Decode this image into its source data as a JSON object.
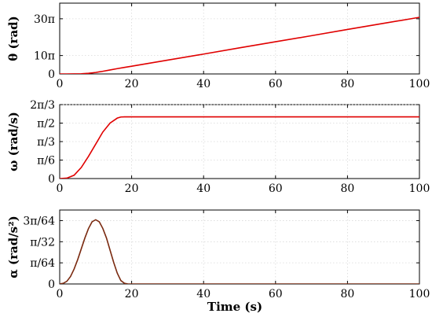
{
  "chart_data": [
    {
      "type": "line",
      "ylabel": "θ (rad)",
      "xlabel": "",
      "xlim": [
        0,
        100
      ],
      "ylim": [
        0,
        38.5
      ],
      "yunit": "π",
      "grid": true,
      "xticks": [
        0,
        20,
        40,
        60,
        80,
        100
      ],
      "xtick_labels": [
        "0",
        "20",
        "40",
        "60",
        "80",
        "100"
      ],
      "yticks": [
        0,
        10,
        30
      ],
      "ytick_labels": [
        "0",
        "10π",
        "30π"
      ],
      "series": [
        {
          "color": "#e00000",
          "x": [
            0,
            2,
            4,
            6,
            8,
            10,
            12,
            14,
            16,
            18,
            20,
            30,
            40,
            50,
            60,
            70,
            80,
            90,
            100
          ],
          "y": [
            0,
            0.001,
            0.02,
            0.11,
            0.36,
            0.81,
            1.44,
            2.15,
            2.88,
            3.55,
            4.2,
            7.5,
            10.8,
            14.2,
            17.5,
            20.8,
            24.2,
            27.5,
            30.8
          ]
        }
      ]
    },
    {
      "type": "line",
      "ylabel": "ω (rad/s)",
      "xlabel": "",
      "xlim": [
        0,
        100
      ],
      "ylim": [
        0,
        0.6667
      ],
      "yunit": "π",
      "grid": true,
      "xticks": [
        0,
        20,
        40,
        60,
        80,
        100
      ],
      "xtick_labels": [
        "0",
        "20",
        "40",
        "60",
        "80",
        "100"
      ],
      "yticks": [
        0,
        0.16667,
        0.33333,
        0.5,
        0.66667
      ],
      "ytick_labels": [
        "0",
        "π/6",
        "π/3",
        "π/2",
        "2π/3"
      ],
      "series": [
        {
          "color": "#e00000",
          "x": [
            0,
            2,
            4,
            6,
            8,
            10,
            12,
            14,
            16,
            17,
            18,
            20,
            40,
            60,
            80,
            100
          ],
          "y": [
            0,
            0.004,
            0.03,
            0.1,
            0.2,
            0.31,
            0.42,
            0.5,
            0.545,
            0.555,
            0.556,
            0.556,
            0.556,
            0.556,
            0.556,
            0.556
          ]
        }
      ]
    },
    {
      "type": "line",
      "ylabel": "α (rad/s²)",
      "xlabel": "Time (s)",
      "xlim": [
        0,
        100
      ],
      "ylim": [
        0,
        0.05469
      ],
      "yunit": "π",
      "grid": true,
      "xticks": [
        0,
        20,
        40,
        60,
        80,
        100
      ],
      "xtick_labels": [
        "0",
        "20",
        "40",
        "60",
        "80",
        "100"
      ],
      "yticks": [
        0,
        0.015625,
        0.03125,
        0.046875
      ],
      "ytick_labels": [
        "0",
        "π/64",
        "π/32",
        "3π/64"
      ],
      "series": [
        {
          "color": "#7a2a10",
          "x": [
            0,
            1,
            2,
            3,
            4,
            5,
            6,
            7,
            8,
            9,
            10,
            11,
            12,
            13,
            14,
            15,
            16,
            17,
            18,
            19,
            20,
            40,
            60,
            80,
            100
          ],
          "y": [
            0,
            0.0005,
            0.002,
            0.0055,
            0.011,
            0.018,
            0.026,
            0.034,
            0.041,
            0.046,
            0.0475,
            0.046,
            0.041,
            0.034,
            0.025,
            0.016,
            0.008,
            0.0025,
            0.0005,
            0,
            0,
            0,
            0,
            0,
            0
          ]
        }
      ]
    }
  ]
}
